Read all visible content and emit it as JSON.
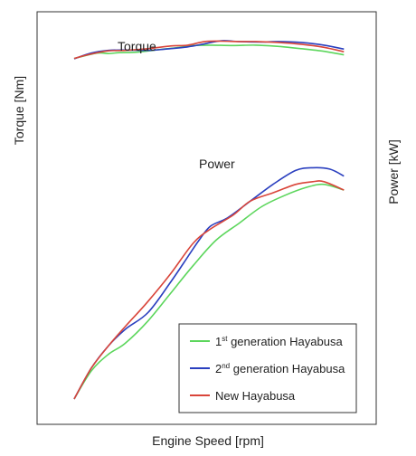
{
  "chart_data": {
    "type": "line",
    "xlabel": "Engine Speed [rpm]",
    "ylabel_left": "Torque [Nm]",
    "ylabel_right": "Power [kW]",
    "x_range": [
      0,
      100
    ],
    "torque_range": [
      0,
      100
    ],
    "power_range": [
      0,
      100
    ],
    "grid": false,
    "legend_position": "bottom-right",
    "annotations": {
      "torque": "Torque",
      "power": "Power"
    },
    "legend": [
      {
        "main": "1",
        "sup": "st",
        "rest": " generation Hayabusa",
        "color": "#5cd65c"
      },
      {
        "main": "2",
        "sup": "nd",
        "rest": " generation Hayabusa",
        "color": "#2a3fbf"
      },
      {
        "main": "New Hayabusa",
        "sup": "",
        "rest": "",
        "color": "#d9453a"
      }
    ],
    "series": [
      {
        "name": "1st generation Hayabusa",
        "color": "#5cd65c",
        "torque": [
          [
            0,
            78
          ],
          [
            8,
            84
          ],
          [
            12,
            83.5
          ],
          [
            16,
            84.5
          ],
          [
            22,
            85
          ],
          [
            30,
            88
          ],
          [
            36,
            90
          ],
          [
            42,
            92.5
          ],
          [
            48,
            93
          ],
          [
            56,
            92.5
          ],
          [
            64,
            93
          ],
          [
            72,
            91.5
          ],
          [
            80,
            89
          ],
          [
            88,
            86
          ],
          [
            95,
            82
          ]
        ],
        "power": [
          [
            0,
            0
          ],
          [
            6,
            10
          ],
          [
            12,
            16
          ],
          [
            18,
            20
          ],
          [
            26,
            28
          ],
          [
            34,
            38
          ],
          [
            42,
            48
          ],
          [
            50,
            57
          ],
          [
            58,
            63
          ],
          [
            66,
            69
          ],
          [
            74,
            73
          ],
          [
            82,
            76
          ],
          [
            88,
            77
          ],
          [
            95,
            75
          ]
        ]
      },
      {
        "name": "2nd generation Hayabusa",
        "color": "#2a3fbf",
        "torque": [
          [
            0,
            77.5
          ],
          [
            6,
            84
          ],
          [
            12,
            87
          ],
          [
            18,
            87.5
          ],
          [
            26,
            87
          ],
          [
            32,
            88.5
          ],
          [
            40,
            91
          ],
          [
            46,
            94.5
          ],
          [
            52,
            98
          ],
          [
            58,
            97
          ],
          [
            66,
            96.5
          ],
          [
            72,
            97
          ],
          [
            80,
            96
          ],
          [
            88,
            93
          ],
          [
            95,
            88.5
          ]
        ],
        "power": [
          [
            0,
            0
          ],
          [
            6,
            11
          ],
          [
            12,
            19
          ],
          [
            18,
            25
          ],
          [
            26,
            31
          ],
          [
            34,
            42
          ],
          [
            40,
            51
          ],
          [
            44,
            57
          ],
          [
            48,
            62
          ],
          [
            54,
            65
          ],
          [
            62,
            71
          ],
          [
            70,
            77
          ],
          [
            78,
            82
          ],
          [
            84,
            83
          ],
          [
            90,
            82.5
          ],
          [
            95,
            80
          ]
        ]
      },
      {
        "name": "New Hayabusa",
        "color": "#d9453a",
        "torque": [
          [
            0,
            78
          ],
          [
            6,
            83
          ],
          [
            12,
            86.5
          ],
          [
            18,
            87
          ],
          [
            26,
            89
          ],
          [
            34,
            92
          ],
          [
            40,
            93
          ],
          [
            46,
            97
          ],
          [
            52,
            97.5
          ],
          [
            58,
            97
          ],
          [
            64,
            97
          ],
          [
            72,
            96
          ],
          [
            80,
            94
          ],
          [
            88,
            90.5
          ],
          [
            95,
            85.5
          ]
        ],
        "power": [
          [
            0,
            0
          ],
          [
            6,
            11
          ],
          [
            12,
            19
          ],
          [
            18,
            26
          ],
          [
            26,
            35
          ],
          [
            34,
            45
          ],
          [
            42,
            56
          ],
          [
            48,
            61
          ],
          [
            56,
            66
          ],
          [
            62,
            71
          ],
          [
            70,
            74
          ],
          [
            78,
            77
          ],
          [
            84,
            78
          ],
          [
            88,
            78
          ],
          [
            95,
            75
          ]
        ]
      }
    ]
  }
}
